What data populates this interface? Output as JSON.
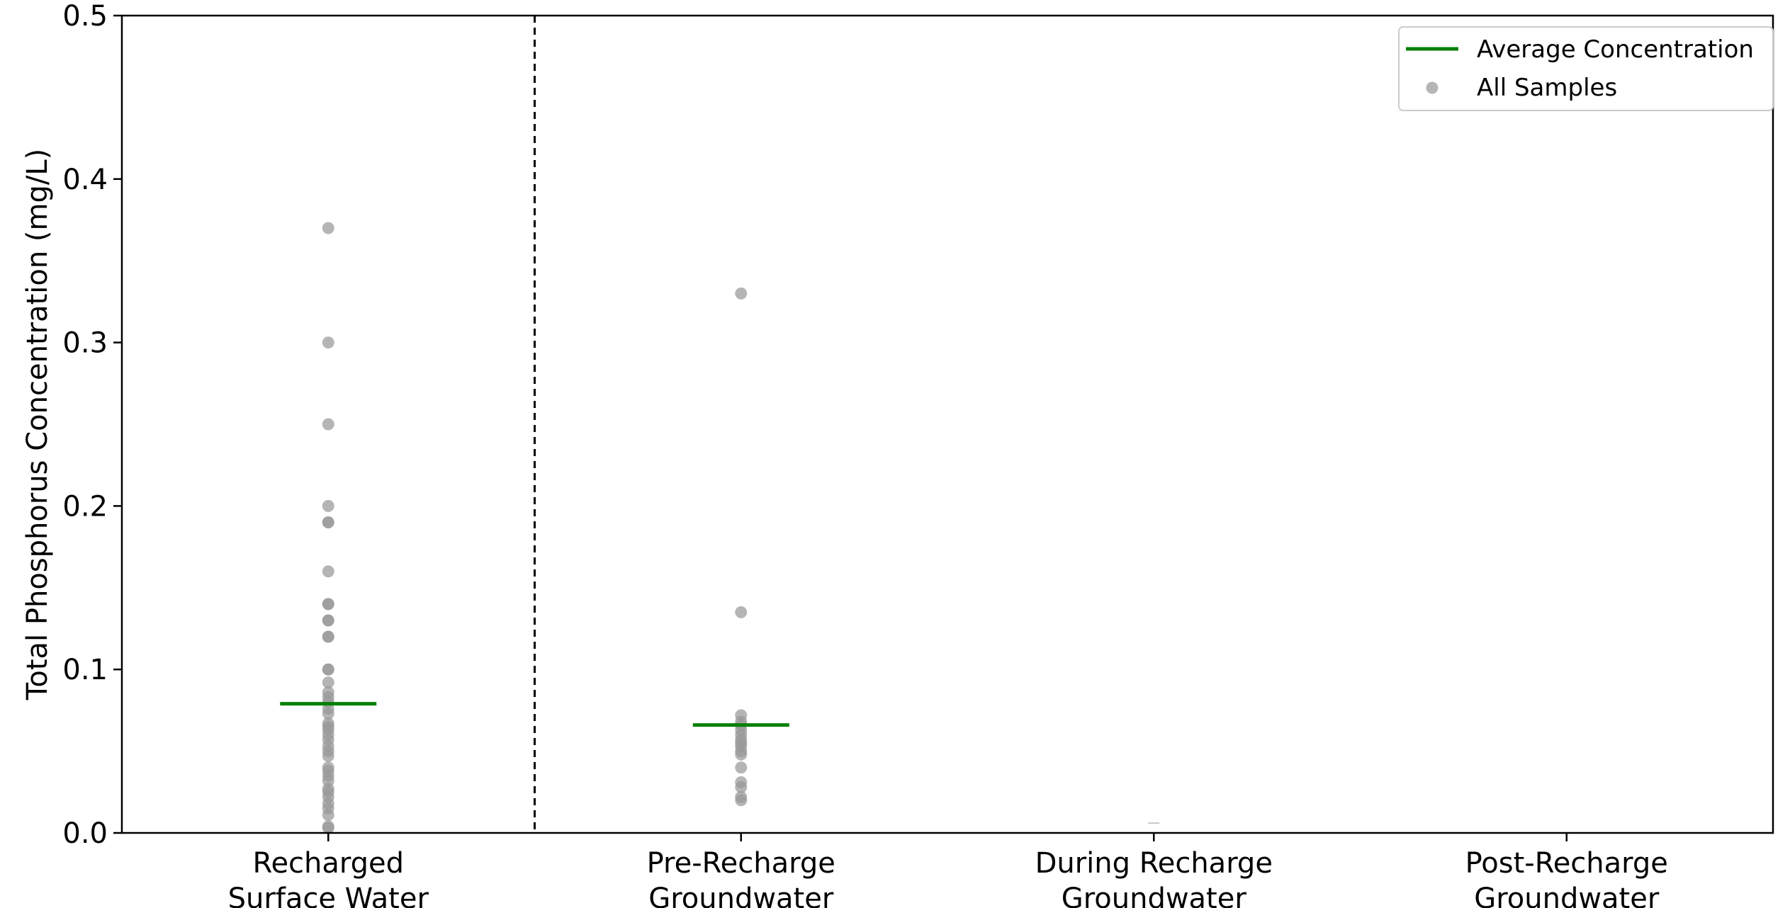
{
  "chart_data": {
    "type": "scatter",
    "title": "",
    "xlabel": "",
    "ylabel": "Total Phosphorus Concentration (mg/L)",
    "ylim": [
      0,
      0.5
    ],
    "yticks": [
      "0.0",
      "0.1",
      "0.2",
      "0.3",
      "0.4",
      "0.5"
    ],
    "categories": [
      [
        "Recharged",
        "Surface Water"
      ],
      [
        "Pre-Recharge",
        "Groundwater"
      ],
      [
        "During Recharge",
        "Groundwater"
      ],
      [
        "Post-Recharge",
        "Groundwater"
      ]
    ],
    "grid": false,
    "divider_after_category": 0,
    "legend": {
      "placement": "top-right",
      "entries": [
        "Average Concentration",
        "All Samples"
      ]
    },
    "series": [
      {
        "name": "All Samples",
        "kind": "points",
        "color": "#999999",
        "points": [
          [
            0,
            0.37
          ],
          [
            0,
            0.3
          ],
          [
            0,
            0.25
          ],
          [
            0,
            0.2
          ],
          [
            0,
            0.19
          ],
          [
            0,
            0.19
          ],
          [
            0,
            0.16
          ],
          [
            0,
            0.14
          ],
          [
            0,
            0.14
          ],
          [
            0,
            0.13
          ],
          [
            0,
            0.13
          ],
          [
            0,
            0.12
          ],
          [
            0,
            0.12
          ],
          [
            0,
            0.1
          ],
          [
            0,
            0.1
          ],
          [
            0,
            0.092
          ],
          [
            0,
            0.086
          ],
          [
            0,
            0.083
          ],
          [
            0,
            0.08
          ],
          [
            0,
            0.076
          ],
          [
            0,
            0.073
          ],
          [
            0,
            0.067
          ],
          [
            0,
            0.065
          ],
          [
            0,
            0.063
          ],
          [
            0,
            0.06
          ],
          [
            0,
            0.057
          ],
          [
            0,
            0.053
          ],
          [
            0,
            0.05
          ],
          [
            0,
            0.047
          ],
          [
            0,
            0.04
          ],
          [
            0,
            0.038
          ],
          [
            0,
            0.035
          ],
          [
            0,
            0.032
          ],
          [
            0,
            0.027
          ],
          [
            0,
            0.025
          ],
          [
            0,
            0.022
          ],
          [
            0,
            0.018
          ],
          [
            0,
            0.015
          ],
          [
            0,
            0.011
          ],
          [
            0,
            0.004
          ],
          [
            0,
            0.003
          ],
          [
            1,
            0.33
          ],
          [
            1,
            0.135
          ],
          [
            1,
            0.072
          ],
          [
            1,
            0.068
          ],
          [
            1,
            0.066
          ],
          [
            1,
            0.063
          ],
          [
            1,
            0.06
          ],
          [
            1,
            0.057
          ],
          [
            1,
            0.055
          ],
          [
            1,
            0.053
          ],
          [
            1,
            0.05
          ],
          [
            1,
            0.048
          ],
          [
            1,
            0.04
          ],
          [
            1,
            0.031
          ],
          [
            1,
            0.028
          ],
          [
            1,
            0.022
          ],
          [
            1,
            0.02
          ]
        ]
      },
      {
        "name": "Average Concentration",
        "kind": "mean-line",
        "color": "#008000",
        "values": [
          [
            0,
            0.079
          ],
          [
            1,
            0.066
          ]
        ]
      },
      {
        "kind": "faint-mark",
        "color": "#c8c8c8",
        "values": [
          [
            2,
            0.006
          ]
        ]
      }
    ]
  }
}
